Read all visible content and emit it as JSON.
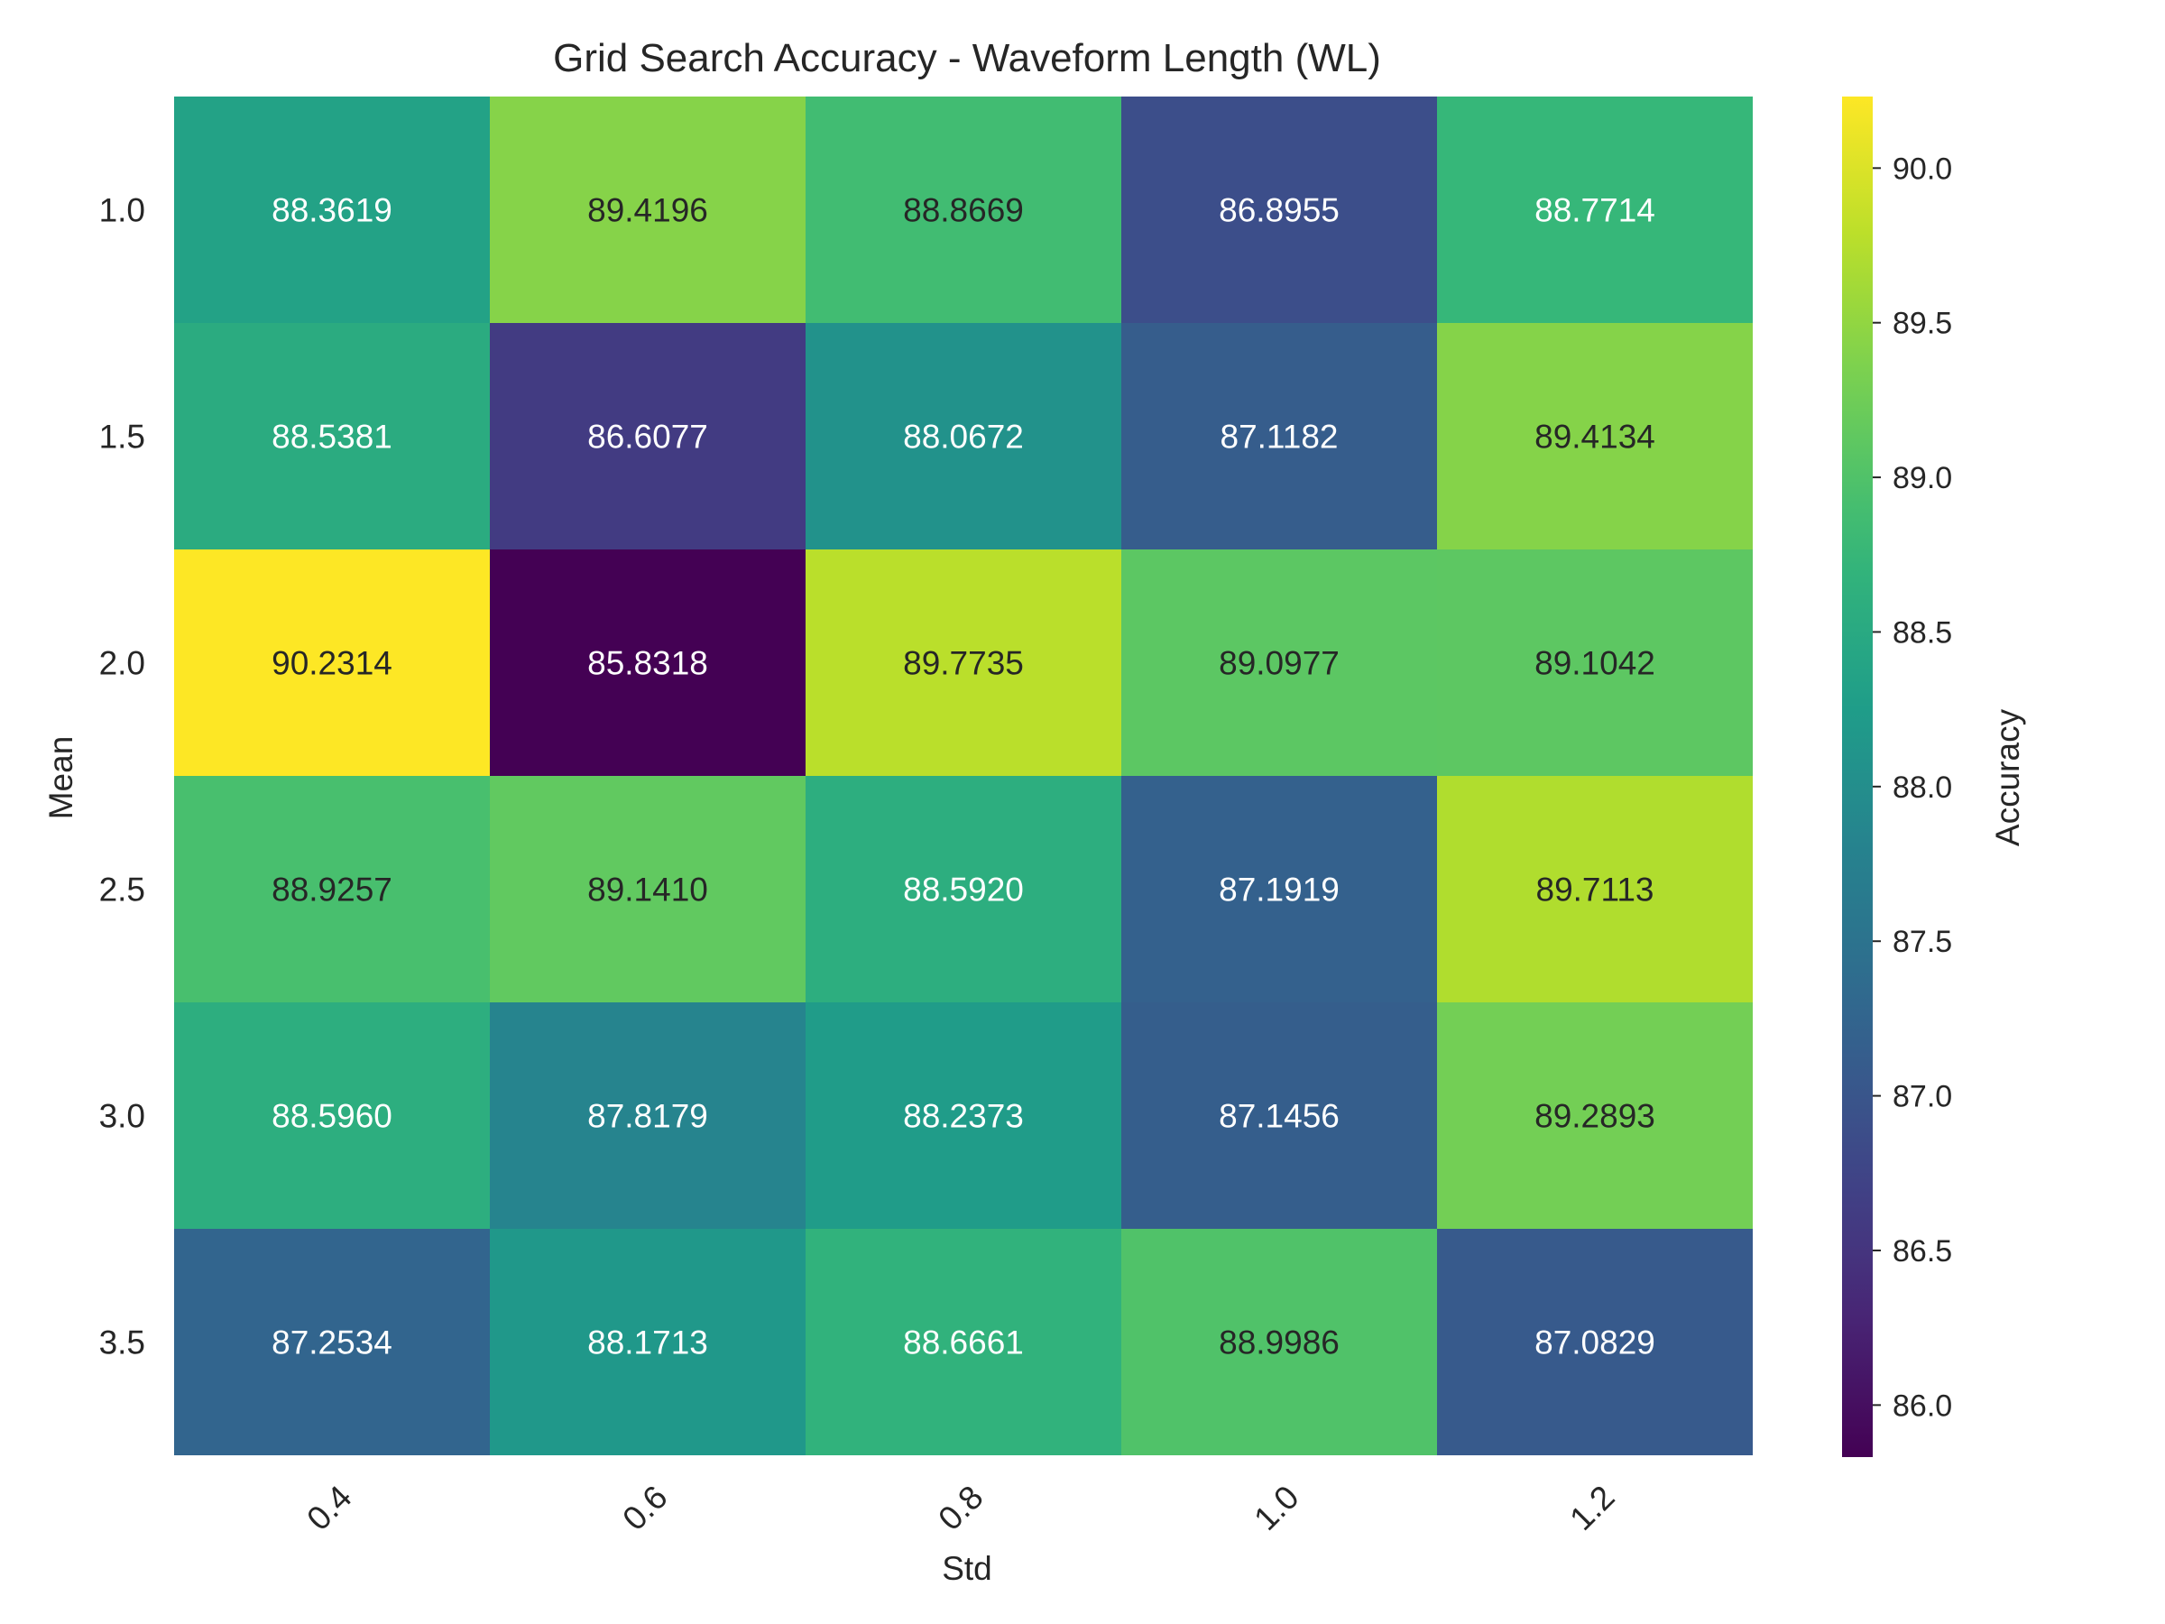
{
  "chart_data": {
    "type": "heatmap",
    "title": "Grid Search Accuracy - Waveform Length (WL)",
    "xlabel": "Std",
    "ylabel": "Mean",
    "x": [
      "0.4",
      "0.6",
      "0.8",
      "1.0",
      "1.2"
    ],
    "y": [
      "1.0",
      "1.5",
      "2.0",
      "2.5",
      "3.0",
      "3.5"
    ],
    "values": [
      [
        88.3619,
        89.4196,
        88.8669,
        86.8955,
        88.7714
      ],
      [
        88.5381,
        86.6077,
        88.0672,
        87.1182,
        89.4134
      ],
      [
        90.2314,
        85.8318,
        89.7735,
        89.0977,
        89.1042
      ],
      [
        88.9257,
        89.141,
        88.592,
        87.1919,
        89.7113
      ],
      [
        88.596,
        87.8179,
        88.2373,
        87.1456,
        89.2893
      ],
      [
        87.2534,
        88.1713,
        88.6661,
        88.9986,
        87.0829
      ]
    ],
    "value_labels": [
      [
        "88.3619",
        "89.4196",
        "88.8669",
        "86.8955",
        "88.7714"
      ],
      [
        "88.5381",
        "86.6077",
        "88.0672",
        "87.1182",
        "89.4134"
      ],
      [
        "90.2314",
        "85.8318",
        "89.7735",
        "89.0977",
        "89.1042"
      ],
      [
        "88.9257",
        "89.1410",
        "88.5920",
        "87.1919",
        "89.7113"
      ],
      [
        "88.5960",
        "87.8179",
        "88.2373",
        "87.1456",
        "89.2893"
      ],
      [
        "87.2534",
        "88.1713",
        "88.6661",
        "88.9986",
        "87.0829"
      ]
    ],
    "colormap": "viridis",
    "vmin": 85.8318,
    "vmax": 90.2314,
    "colorbar": {
      "label": "Accuracy",
      "ticks": [
        86.0,
        86.5,
        87.0,
        87.5,
        88.0,
        88.5,
        89.0,
        89.5,
        90.0
      ],
      "tick_labels": [
        "86.0",
        "86.5",
        "87.0",
        "87.5",
        "88.0",
        "88.5",
        "89.0",
        "89.5",
        "90.0"
      ]
    },
    "grid": false
  }
}
